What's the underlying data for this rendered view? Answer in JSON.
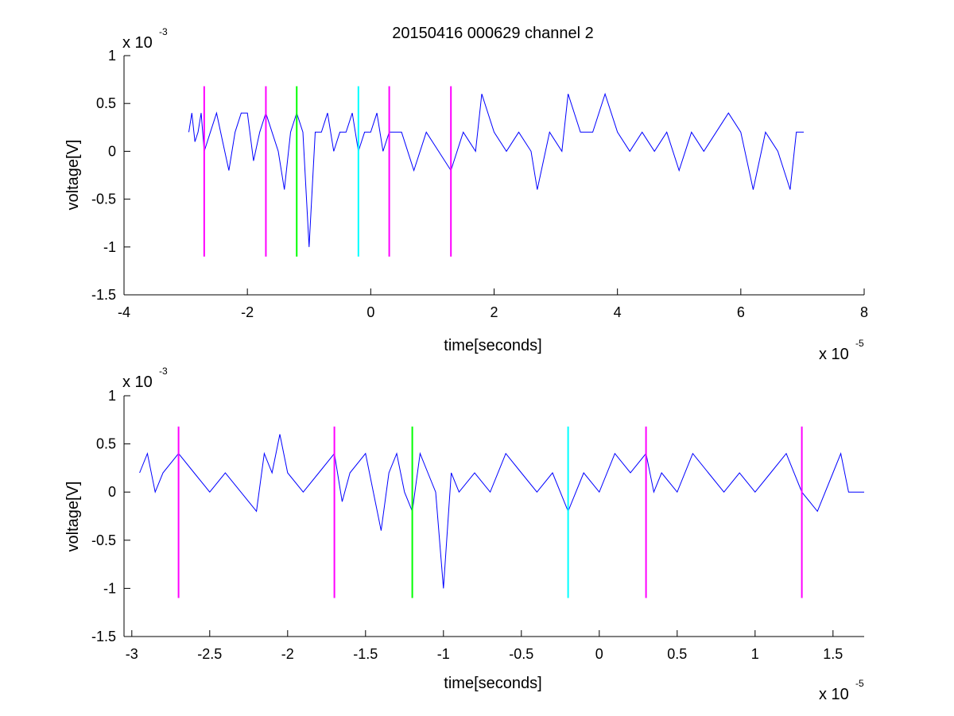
{
  "figure": {
    "title": "20150416 000629 channel 2"
  },
  "chart_data": [
    {
      "type": "line",
      "xlabel": "time[seconds]",
      "ylabel": "voltage[V]",
      "x_scale_text": "x 10",
      "x_scale_exp": "-5",
      "y_scale_text": "x 10",
      "y_scale_exp": "-3",
      "xlim": [
        -4e-05,
        8e-05
      ],
      "ylim": [
        -0.0015,
        0.001
      ],
      "x_ticks": [
        -4e-05,
        -2e-05,
        0,
        2e-05,
        4e-05,
        6e-05,
        8e-05
      ],
      "x_tick_labels": [
        "-4",
        "-2",
        "0",
        "2",
        "4",
        "6",
        "8"
      ],
      "y_ticks": [
        -0.0015,
        -0.001,
        -0.0005,
        0,
        0.0005,
        0.001
      ],
      "y_tick_labels": [
        "-1.5",
        "-1",
        "-0.5",
        "0",
        "0.5",
        "1"
      ],
      "grid": false,
      "series": [
        {
          "color": "#0000ff",
          "x_start": -2.95e-05,
          "x_end": 7.02e-05,
          "points": [
            [
              -2.95e-05,
              0.0002
            ],
            [
              -2.9e-05,
              0.0004
            ],
            [
              -2.85e-05,
              0.0001
            ],
            [
              -2.8e-05,
              0.0002
            ],
            [
              -2.75e-05,
              0.0004
            ],
            [
              -2.7e-05,
              0
            ],
            [
              -2.6e-05,
              0.0002
            ],
            [
              -2.5e-05,
              0.0004
            ],
            [
              -2.4e-05,
              0.0001
            ],
            [
              -2.3e-05,
              -0.0002
            ],
            [
              -2.2e-05,
              0.0002
            ],
            [
              -2.1e-05,
              0.0004
            ],
            [
              -2e-05,
              0.0004
            ],
            [
              -1.9e-05,
              -0.0001
            ],
            [
              -1.8e-05,
              0.0002
            ],
            [
              -1.7e-05,
              0.0004
            ],
            [
              -1.6e-05,
              0.0002
            ],
            [
              -1.5e-05,
              0
            ],
            [
              -1.4e-05,
              -0.0004
            ],
            [
              -1.3e-05,
              0.0002
            ],
            [
              -1.2e-05,
              0.0004
            ],
            [
              -1.1e-05,
              0.0002
            ],
            [
              -1e-05,
              -0.001
            ],
            [
              -9e-06,
              0.0002
            ],
            [
              -8e-06,
              0.0002
            ],
            [
              -7e-06,
              0.0004
            ],
            [
              -6e-06,
              0
            ],
            [
              -5e-06,
              0.0002
            ],
            [
              -4e-06,
              0.0002
            ],
            [
              -3e-06,
              0.0004
            ],
            [
              -2e-06,
              0
            ],
            [
              -1e-06,
              0.0002
            ],
            [
              0,
              0.0002
            ],
            [
              1e-06,
              0.0004
            ],
            [
              2e-06,
              0
            ],
            [
              3e-06,
              0.0002
            ],
            [
              5e-06,
              0.0002
            ],
            [
              7e-06,
              -0.0002
            ],
            [
              9e-06,
              0.0002
            ],
            [
              1.1e-05,
              0
            ],
            [
              1.3e-05,
              -0.0002
            ],
            [
              1.5e-05,
              0.0002
            ],
            [
              1.7e-05,
              0
            ],
            [
              1.8e-05,
              0.0006
            ],
            [
              2e-05,
              0.0002
            ],
            [
              2.2e-05,
              0
            ],
            [
              2.4e-05,
              0.0002
            ],
            [
              2.6e-05,
              0
            ],
            [
              2.7e-05,
              -0.0004
            ],
            [
              2.9e-05,
              0.0002
            ],
            [
              3.1e-05,
              0
            ],
            [
              3.2e-05,
              0.0006
            ],
            [
              3.4e-05,
              0.0002
            ],
            [
              3.6e-05,
              0.0002
            ],
            [
              3.8e-05,
              0.0006
            ],
            [
              4e-05,
              0.0002
            ],
            [
              4.2e-05,
              0
            ],
            [
              4.4e-05,
              0.0002
            ],
            [
              4.6e-05,
              0
            ],
            [
              4.8e-05,
              0.0002
            ],
            [
              5e-05,
              -0.0002
            ],
            [
              5.2e-05,
              0.0002
            ],
            [
              5.4e-05,
              0
            ],
            [
              5.6e-05,
              0.0002
            ],
            [
              5.8e-05,
              0.0004
            ],
            [
              6e-05,
              0.0002
            ],
            [
              6.2e-05,
              -0.0004
            ],
            [
              6.4e-05,
              0.0002
            ],
            [
              6.6e-05,
              0
            ],
            [
              6.8e-05,
              -0.0004
            ],
            [
              6.9e-05,
              0.0002
            ],
            [
              7.02e-05,
              0.0002
            ]
          ]
        }
      ],
      "markers": [
        {
          "x": -2.7e-05,
          "color": "#ff00ff"
        },
        {
          "x": -1.7e-05,
          "color": "#ff00ff"
        },
        {
          "x": -1.2e-05,
          "color": "#00ff00"
        },
        {
          "x": -2e-06,
          "color": "#00ffff"
        },
        {
          "x": 3e-06,
          "color": "#ff00ff"
        },
        {
          "x": 1.3e-05,
          "color": "#ff00ff"
        }
      ],
      "marker_range": [
        -0.0011,
        0.00068
      ]
    },
    {
      "type": "line",
      "xlabel": "time[seconds]",
      "ylabel": "voltage[V]",
      "x_scale_text": "x 10",
      "x_scale_exp": "-5",
      "y_scale_text": "x 10",
      "y_scale_exp": "-3",
      "xlim": [
        -3.05e-05,
        1.7e-05
      ],
      "ylim": [
        -0.0015,
        0.001
      ],
      "x_ticks": [
        -3e-05,
        -2.5e-05,
        -2e-05,
        -1.5e-05,
        -1e-05,
        -5e-06,
        0,
        5e-06,
        1e-05,
        1.5e-05
      ],
      "x_tick_labels": [
        "-3",
        "-2.5",
        "-2",
        "-1.5",
        "-1",
        "-0.5",
        "0",
        "0.5",
        "1",
        "1.5"
      ],
      "y_ticks": [
        -0.0015,
        -0.001,
        -0.0005,
        0,
        0.0005,
        0.001
      ],
      "y_tick_labels": [
        "-1.5",
        "-1",
        "-0.5",
        "0",
        "0.5",
        "1"
      ],
      "grid": false,
      "series": [
        {
          "color": "#0000ff",
          "points": [
            [
              -2.95e-05,
              0.0002
            ],
            [
              -2.9e-05,
              0.0004
            ],
            [
              -2.85e-05,
              0
            ],
            [
              -2.8e-05,
              0.0002
            ],
            [
              -2.7e-05,
              0.0004
            ],
            [
              -2.6e-05,
              0.0002
            ],
            [
              -2.5e-05,
              0
            ],
            [
              -2.4e-05,
              0.0002
            ],
            [
              -2.3e-05,
              0
            ],
            [
              -2.2e-05,
              -0.0002
            ],
            [
              -2.15e-05,
              0.0004
            ],
            [
              -2.1e-05,
              0.0002
            ],
            [
              -2.05e-05,
              0.0006
            ],
            [
              -2e-05,
              0.0002
            ],
            [
              -1.9e-05,
              0
            ],
            [
              -1.8e-05,
              0.0002
            ],
            [
              -1.7e-05,
              0.0004
            ],
            [
              -1.65e-05,
              -0.0001
            ],
            [
              -1.6e-05,
              0.0002
            ],
            [
              -1.5e-05,
              0.0004
            ],
            [
              -1.4e-05,
              -0.0004
            ],
            [
              -1.35e-05,
              0.0002
            ],
            [
              -1.3e-05,
              0.0004
            ],
            [
              -1.25e-05,
              0
            ],
            [
              -1.2e-05,
              -0.0002
            ],
            [
              -1.15e-05,
              0.0004
            ],
            [
              -1.1e-05,
              0.0002
            ],
            [
              -1.05e-05,
              0
            ],
            [
              -1e-05,
              -0.001
            ],
            [
              -9.5e-06,
              0.0002
            ],
            [
              -9e-06,
              0
            ],
            [
              -8e-06,
              0.0002
            ],
            [
              -7e-06,
              0
            ],
            [
              -6e-06,
              0.0004
            ],
            [
              -5e-06,
              0.0002
            ],
            [
              -4e-06,
              0
            ],
            [
              -3e-06,
              0.0002
            ],
            [
              -2e-06,
              -0.0002
            ],
            [
              -1e-06,
              0.0002
            ],
            [
              0,
              0
            ],
            [
              1e-06,
              0.0004
            ],
            [
              2e-06,
              0.0002
            ],
            [
              3e-06,
              0.0004
            ],
            [
              3.5e-06,
              0
            ],
            [
              4e-06,
              0.0002
            ],
            [
              5e-06,
              0
            ],
            [
              6e-06,
              0.0004
            ],
            [
              7e-06,
              0.0002
            ],
            [
              8e-06,
              0
            ],
            [
              9e-06,
              0.0002
            ],
            [
              1e-05,
              0
            ],
            [
              1.1e-05,
              0.0002
            ],
            [
              1.2e-05,
              0.0004
            ],
            [
              1.3e-05,
              0
            ],
            [
              1.4e-05,
              -0.0002
            ],
            [
              1.5e-05,
              0.0002
            ],
            [
              1.55e-05,
              0.0004
            ],
            [
              1.6e-05,
              0
            ],
            [
              1.7e-05,
              0
            ]
          ]
        }
      ],
      "markers": [
        {
          "x": -2.7e-05,
          "color": "#ff00ff"
        },
        {
          "x": -1.7e-05,
          "color": "#ff00ff"
        },
        {
          "x": -1.2e-05,
          "color": "#00ff00"
        },
        {
          "x": -2e-06,
          "color": "#00ffff"
        },
        {
          "x": 3e-06,
          "color": "#ff00ff"
        },
        {
          "x": 1.3e-05,
          "color": "#ff00ff"
        }
      ],
      "marker_range": [
        -0.0011,
        0.00068
      ]
    }
  ]
}
